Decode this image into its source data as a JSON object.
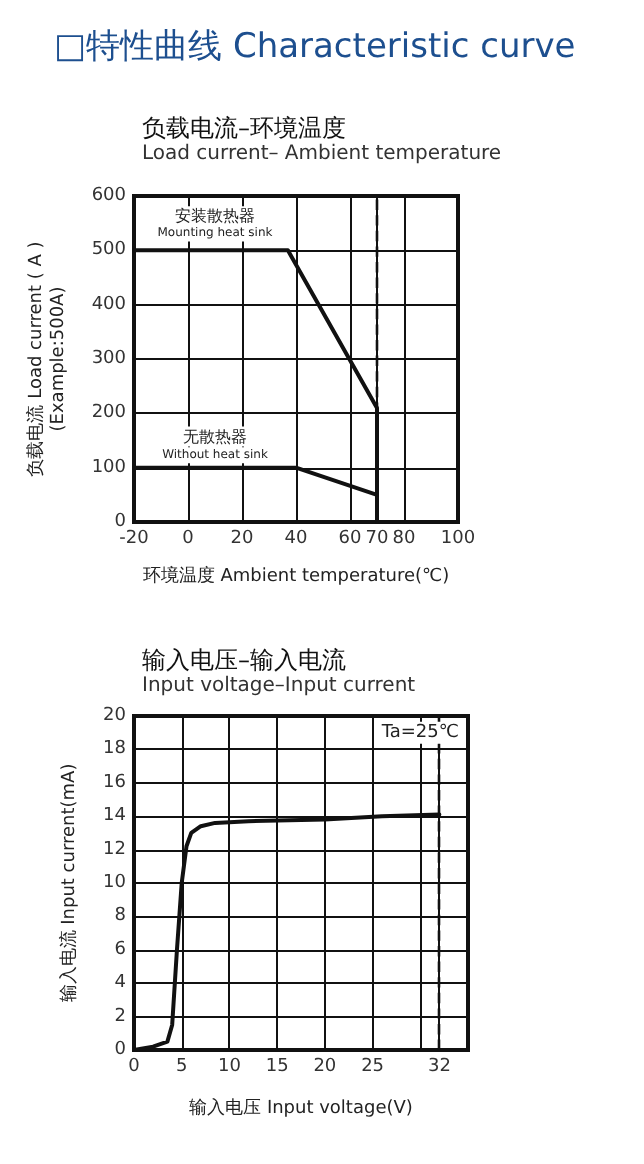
{
  "chart_data": [
    {
      "type": "other",
      "title": "□特性曲线 Characteristic curve"
    },
    {
      "type": "line",
      "title": "负载电流–环境温度",
      "subtitle": "Load current– Ambient temperature",
      "xlabel": "环境温度 Ambient temperature(℃)",
      "ylabel": "负载电流 Load current ( A )\n(Example:500A)",
      "series": [
        {
          "color": "#111111",
          "x": [
            -20,
            37,
            70,
            70
          ],
          "values": [
            500,
            500,
            210,
            0
          ]
        },
        {
          "color": "#111111",
          "x": [
            -20,
            40,
            70
          ],
          "values": [
            100,
            100,
            50
          ]
        }
      ],
      "xlim": [
        -20,
        100
      ],
      "xticks": [
        -20,
        0,
        20,
        40,
        60,
        70,
        80,
        100
      ],
      "ylim": [
        0,
        600
      ],
      "yticks": [
        0,
        100,
        200,
        300,
        400,
        500,
        600
      ],
      "ref_lines": [
        {
          "axis": "x",
          "value": 70,
          "line_style": "dashed",
          "color": "#111111"
        }
      ],
      "annotations": [
        "安装散热器",
        "Mounting heat sink",
        "无散热器",
        "Without heat sink"
      ],
      "grid": true,
      "marker": "none",
      "line_style": "solid"
    },
    {
      "type": "line",
      "title": "输入电压–输入电流",
      "subtitle": "Input voltage–Input current",
      "xlabel": "输入电压 Input voltage(V)",
      "ylabel": "输入电流 Input current(mA)",
      "series": [
        {
          "color": "#111111",
          "x": [
            0,
            2,
            3.5,
            4,
            4.5,
            5,
            5.5,
            6,
            7,
            8.5,
            12,
            20,
            26,
            32
          ],
          "values": [
            0,
            0.2,
            0.5,
            1.5,
            6,
            10,
            12.2,
            13,
            13.4,
            13.6,
            13.7,
            13.8,
            14,
            14.1
          ]
        }
      ],
      "xlim": [
        0,
        35
      ],
      "xticks": [
        0,
        5,
        10,
        15,
        20,
        25,
        {
          "value": 30,
          "label": null
        },
        32
      ],
      "ylim": [
        0,
        20
      ],
      "yticks": [
        0,
        2,
        4,
        6,
        8,
        10,
        12,
        14,
        16,
        18,
        20
      ],
      "ref_lines": [
        {
          "axis": "x",
          "value": 32,
          "line_style": "dashed",
          "color": "#111111"
        }
      ],
      "annotations": [
        "Ta=25℃"
      ],
      "grid": true,
      "marker": "none",
      "line_style": "solid"
    }
  ]
}
